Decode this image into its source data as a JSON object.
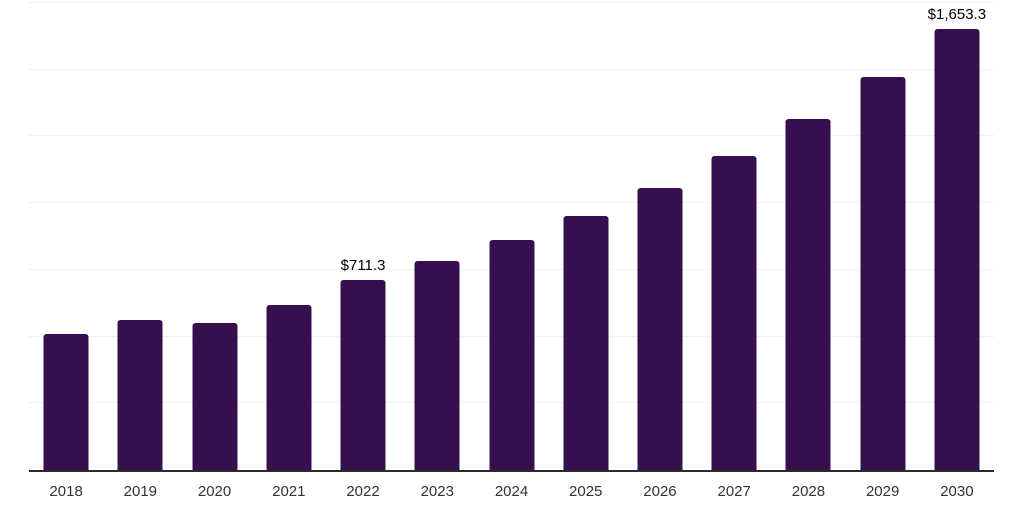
{
  "page": {
    "background": "#ffffff"
  },
  "chart_data": {
    "type": "bar",
    "title": "",
    "xlabel": "",
    "ylabel": "",
    "categories": [
      "2018",
      "2019",
      "2020",
      "2021",
      "2022",
      "2023",
      "2024",
      "2025",
      "2026",
      "2027",
      "2028",
      "2029",
      "2030"
    ],
    "values": [
      510,
      562,
      551,
      620,
      711.3,
      783,
      862,
      953,
      1057,
      1176,
      1314,
      1472,
      1653.3
    ],
    "data_labels": [
      null,
      null,
      null,
      null,
      "$711.3",
      null,
      null,
      null,
      null,
      null,
      null,
      null,
      "$1,653.3"
    ],
    "ylim": [
      0,
      1750
    ],
    "gridline_step": 250,
    "grid": "horizontal",
    "legend": "none",
    "y_axis_labels": "none",
    "colors": {
      "bar": "#36104e",
      "gridline": "#f1f1f3",
      "axis_line": "#2b2b2b",
      "tick_label": "#333333",
      "data_label": "#000000"
    }
  }
}
